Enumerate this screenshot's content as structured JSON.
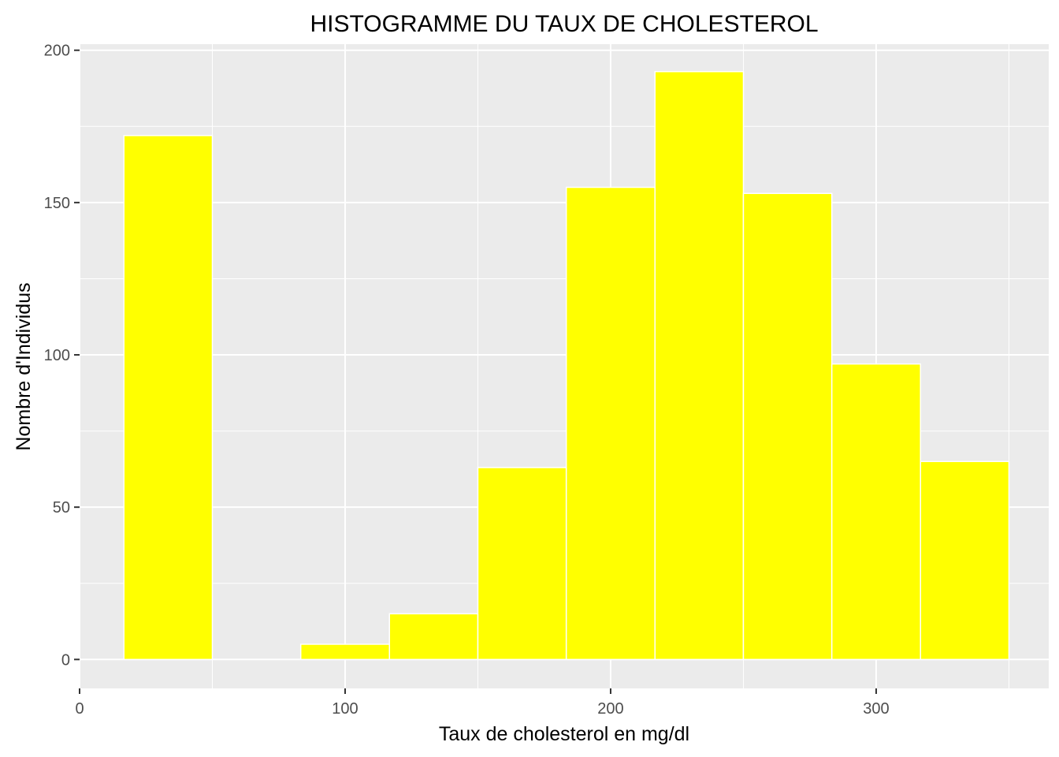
{
  "chart_data": {
    "type": "bar",
    "subtype": "histogram",
    "title": "HISTOGRAMME DU TAUX DE CHOLESTEROL",
    "xlabel": "Taux de cholesterol en mg/dl",
    "ylabel": "Nombre d'Individus",
    "xlim": [
      0,
      365
    ],
    "ylim": [
      -9.5,
      202
    ],
    "x_ticks": [
      0,
      100,
      200,
      300
    ],
    "y_ticks": [
      0,
      50,
      100,
      150,
      200
    ],
    "grid": true,
    "legend": "none",
    "bins": [
      {
        "x0": 16.7,
        "x1": 50.0,
        "count": 172
      },
      {
        "x0": 50.0,
        "x1": 83.3,
        "count": 0
      },
      {
        "x0": 83.3,
        "x1": 116.7,
        "count": 5
      },
      {
        "x0": 116.7,
        "x1": 150.0,
        "count": 15
      },
      {
        "x0": 150.0,
        "x1": 183.3,
        "count": 63
      },
      {
        "x0": 183.3,
        "x1": 216.7,
        "count": 155
      },
      {
        "x0": 216.7,
        "x1": 250.0,
        "count": 193
      },
      {
        "x0": 250.0,
        "x1": 283.3,
        "count": 153
      },
      {
        "x0": 283.3,
        "x1": 316.7,
        "count": 97
      },
      {
        "x0": 316.7,
        "x1": 350.0,
        "count": 65
      }
    ],
    "colors": {
      "bar_fill": "#ffff00",
      "bar_stroke": "#ffffff",
      "panel_bg": "#ebebeb",
      "grid": "#ffffff",
      "tick_text": "#4d4d4d",
      "tick_mark": "#333333"
    }
  }
}
